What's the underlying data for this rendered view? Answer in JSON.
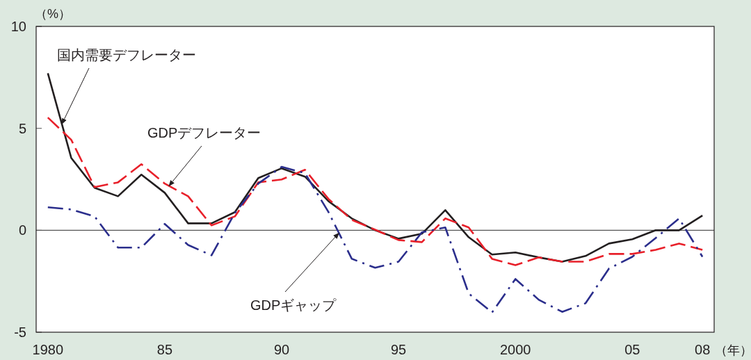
{
  "chart_data": {
    "type": "line",
    "ylabel": "（%）",
    "xlabel": "（年）",
    "x": [
      1980,
      1981,
      1982,
      1983,
      1984,
      1985,
      1986,
      1987,
      1988,
      1989,
      1990,
      1991,
      1992,
      1993,
      1994,
      1995,
      1996,
      1997,
      1998,
      1999,
      2000,
      2001,
      2002,
      2003,
      2004,
      2005,
      2006,
      2007,
      2008
    ],
    "xlim": [
      1979.5,
      2008.5
    ],
    "xticks": [
      1980,
      {
        "value": 1985,
        "label": "85"
      },
      {
        "value": 1990,
        "label": "90"
      },
      {
        "value": 1995,
        "label": "95"
      },
      2000,
      {
        "value": 2005,
        "label": "05"
      },
      {
        "value": 2008,
        "label": "08"
      }
    ],
    "ylim": [
      -5,
      10
    ],
    "yticks": [
      -5,
      0,
      5,
      10
    ],
    "ref_lines": [
      {
        "axis": "y",
        "value": 0,
        "color": "#555555"
      }
    ],
    "series": [
      {
        "name": "国内需要デフレーター",
        "color": "#231f20",
        "line_style": "solid",
        "values": [
          7.7,
          3.55,
          2.08,
          1.67,
          2.73,
          1.84,
          0.34,
          0.34,
          0.89,
          2.56,
          3.04,
          2.63,
          1.43,
          0.58,
          0.0,
          -0.41,
          -0.17,
          0.99,
          -0.34,
          -1.19,
          -1.09,
          -1.33,
          -1.54,
          -1.26,
          -0.65,
          -0.44,
          0.0,
          0.0,
          0.72
        ]
      },
      {
        "name": "GDPデフレーター",
        "color": "#e8202a",
        "line_style": "dashed",
        "values": [
          5.53,
          4.44,
          2.12,
          2.35,
          3.24,
          2.29,
          1.67,
          0.24,
          0.68,
          2.35,
          2.49,
          2.97,
          1.54,
          0.51,
          0.03,
          -0.48,
          -0.58,
          0.58,
          0.14,
          -1.4,
          -1.71,
          -1.33,
          -1.54,
          -1.54,
          -1.16,
          -1.16,
          -0.96,
          -0.65,
          -0.96
        ]
      },
      {
        "name": "GDPギャップ",
        "color": "#2b2e8c",
        "line_style": "dashdot",
        "values": [
          1.13,
          1.02,
          0.68,
          -0.85,
          -0.85,
          0.31,
          -0.72,
          -1.23,
          0.85,
          2.29,
          3.11,
          2.8,
          0.9,
          -1.4,
          -1.84,
          -1.54,
          -0.1,
          0.14,
          -3.1,
          -4.03,
          -2.39,
          -3.41,
          -4.0,
          -3.58,
          -1.88,
          -1.3,
          -0.38,
          0.58,
          -1.3
        ]
      }
    ]
  }
}
